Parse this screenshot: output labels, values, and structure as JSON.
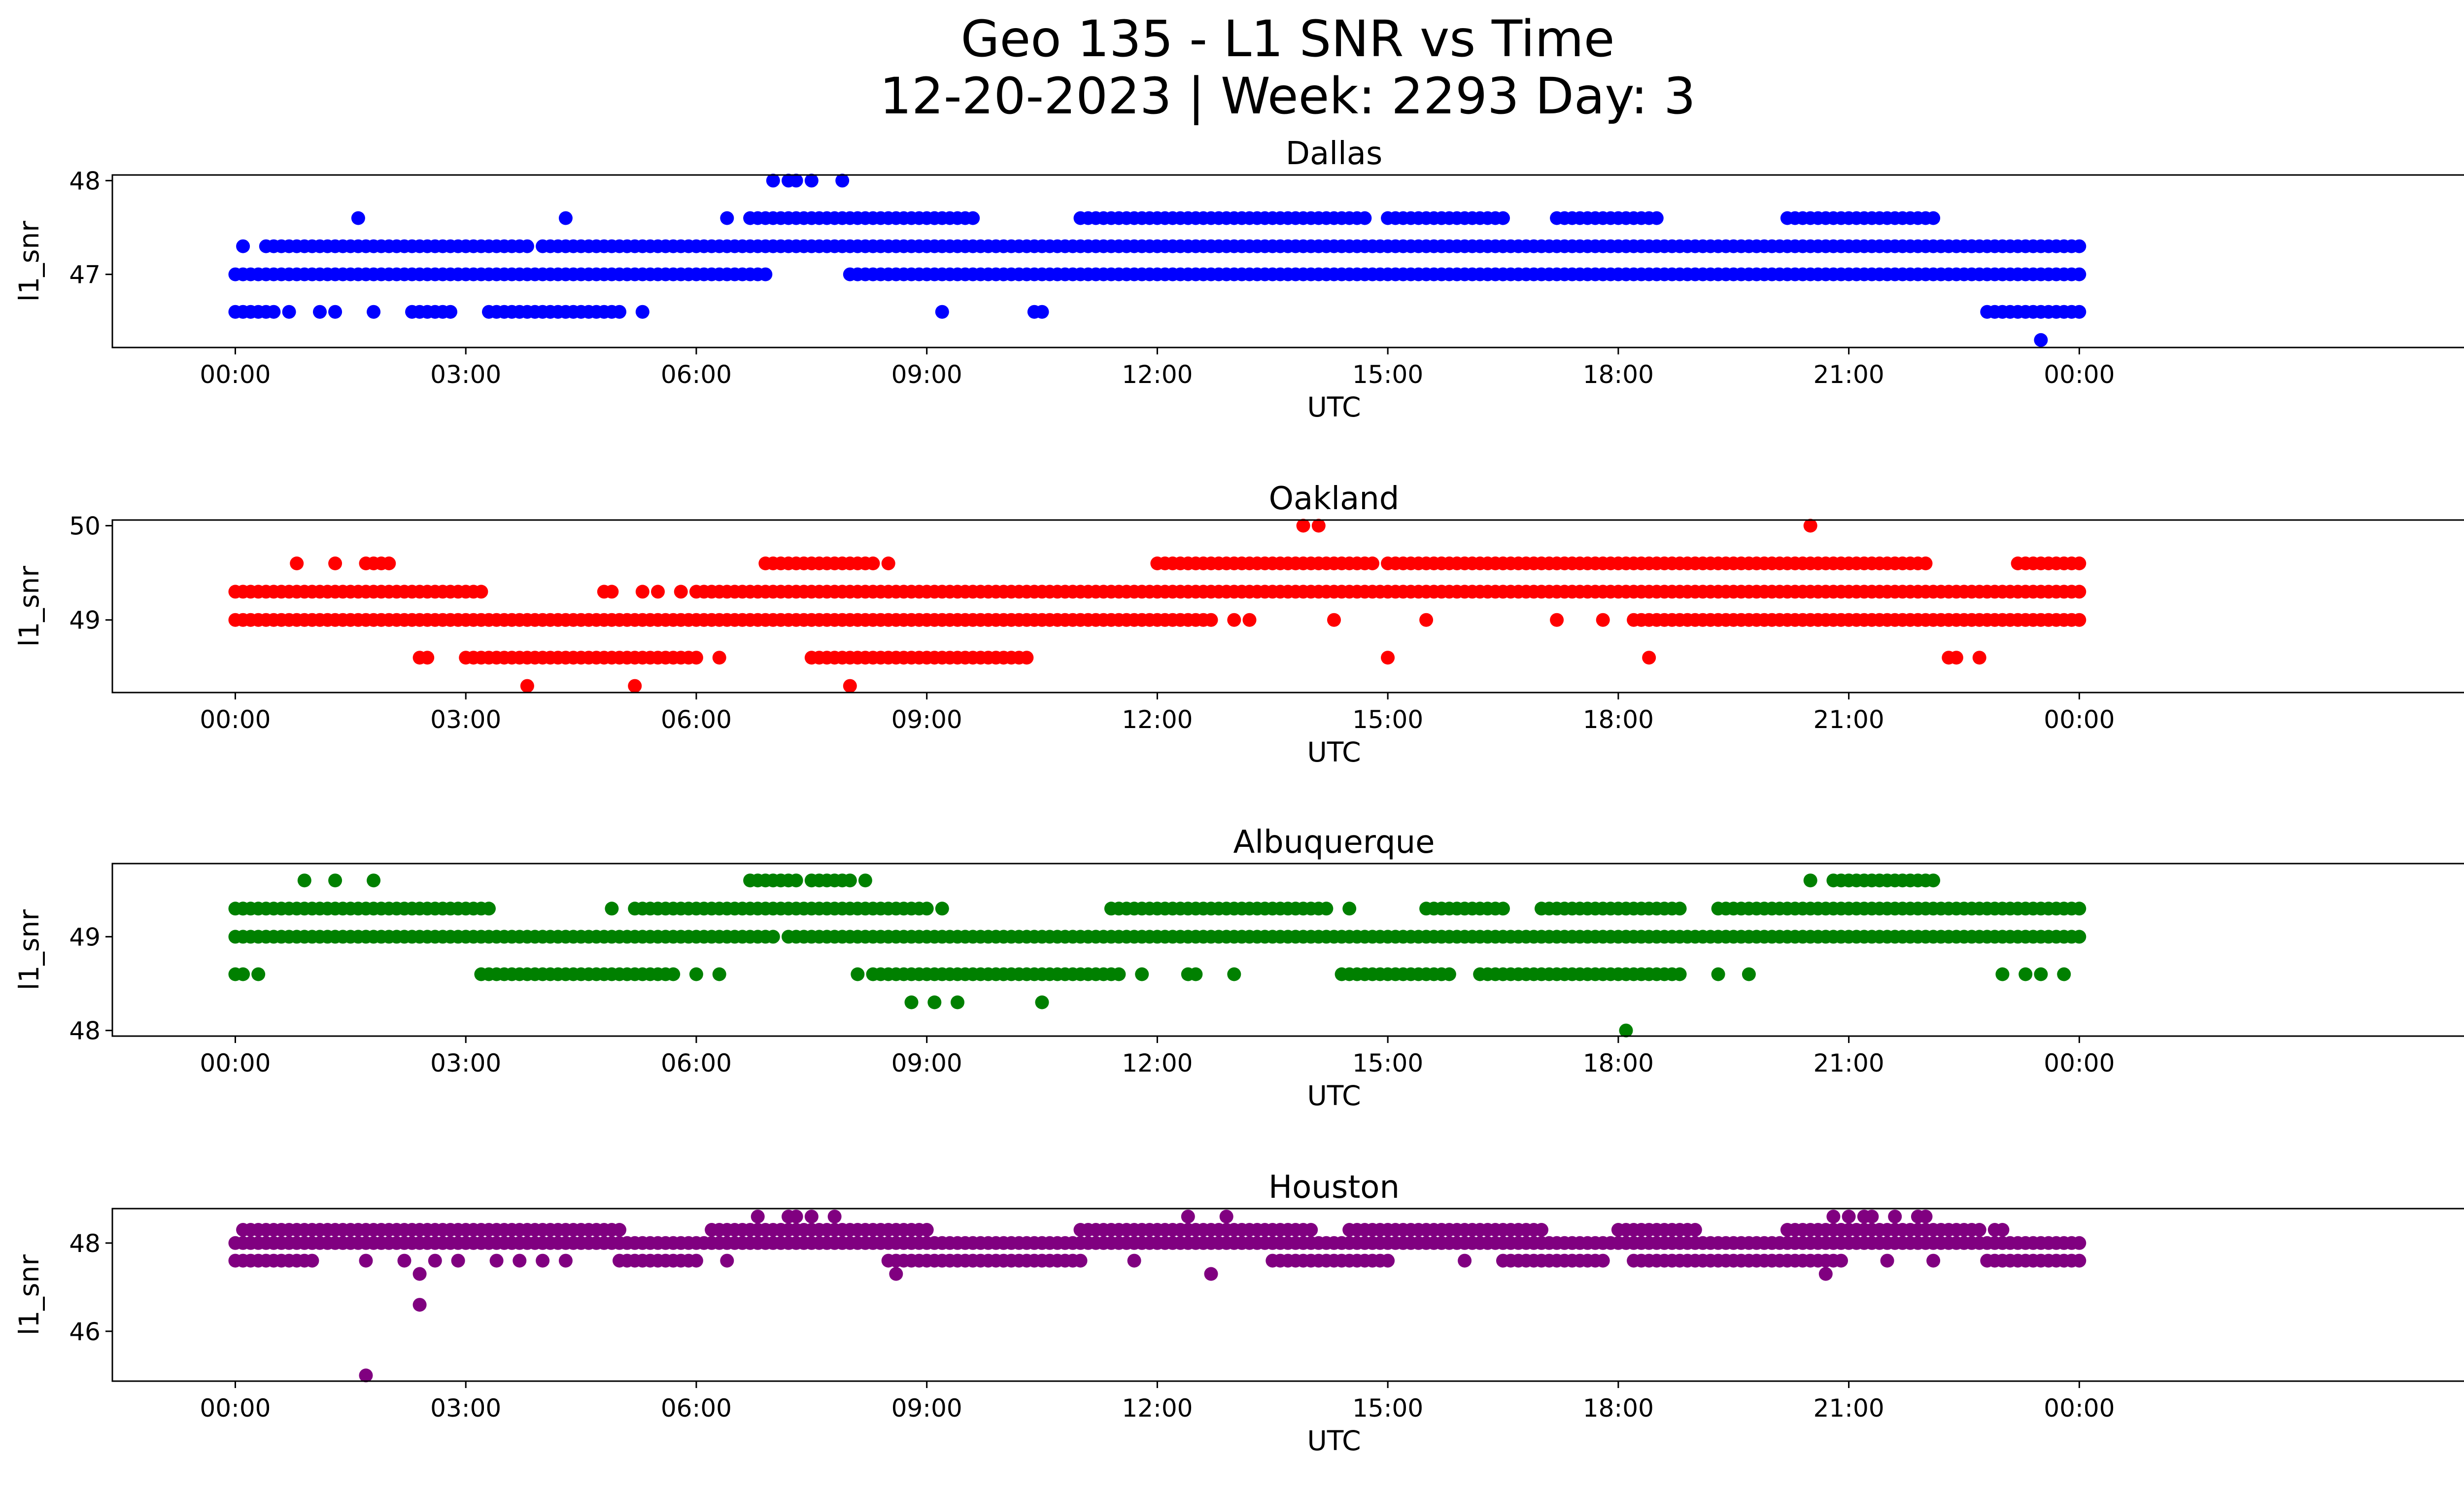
{
  "title_line1": "Geo 135 - L1 SNR vs Time",
  "title_line2": "12-20-2023 | Week: 2293 Day: 3",
  "chart_data": [
    {
      "type": "scatter",
      "title": "Dallas",
      "xlabel": "UTC",
      "ylabel": "l1_snr",
      "color": "#0000ff",
      "xlim": [
        -1.6,
        30.2
      ],
      "ylim": [
        46.22,
        48.06
      ],
      "xticks": [
        0,
        3,
        6,
        9,
        12,
        15,
        18,
        21,
        24
      ],
      "xticklabels": [
        "00:00",
        "03:00",
        "06:00",
        "09:00",
        "12:00",
        "15:00",
        "18:00",
        "21:00",
        "00:00"
      ],
      "yticks": [
        47,
        48
      ],
      "yticklabels": [
        "47",
        "48"
      ],
      "segments": [
        {
          "y": 47.3,
          "ranges": [
            [
              0.1,
              0.1
            ],
            [
              0.4,
              3.8
            ],
            [
              4.0,
              24.0
            ]
          ]
        },
        {
          "y": 47.0,
          "ranges": [
            [
              0.0,
              6.8
            ],
            [
              8.0,
              24.0
            ]
          ]
        },
        {
          "y": 47.6,
          "ranges": [
            [
              6.7,
              9.6
            ],
            [
              11.0,
              14.7
            ],
            [
              15.0,
              16.5
            ],
            [
              17.2,
              18.5
            ],
            [
              20.2,
              22.1
            ]
          ]
        },
        {
          "y": 46.6,
          "ranges": [
            [
              0.0,
              0.5
            ],
            [
              2.3,
              2.8
            ],
            [
              3.3,
              5.0
            ],
            [
              22.8,
              24.0
            ]
          ]
        }
      ],
      "points": [
        {
          "x": 0.7,
          "y": 46.6
        },
        {
          "x": 1.1,
          "y": 46.6
        },
        {
          "x": 1.3,
          "y": 46.6
        },
        {
          "x": 1.8,
          "y": 46.6
        },
        {
          "x": 5.3,
          "y": 46.6
        },
        {
          "x": 9.2,
          "y": 46.6
        },
        {
          "x": 10.4,
          "y": 46.6
        },
        {
          "x": 10.5,
          "y": 46.6
        },
        {
          "x": 1.6,
          "y": 47.6
        },
        {
          "x": 4.3,
          "y": 47.6
        },
        {
          "x": 6.4,
          "y": 47.6
        },
        {
          "x": 9.1,
          "y": 47.6
        },
        {
          "x": 7.0,
          "y": 48.0
        },
        {
          "x": 7.2,
          "y": 48.0
        },
        {
          "x": 7.3,
          "y": 48.0
        },
        {
          "x": 7.5,
          "y": 48.0
        },
        {
          "x": 7.9,
          "y": 48.0
        },
        {
          "x": 23.5,
          "y": 46.3
        },
        {
          "x": 22.6,
          "y": 47.3
        },
        {
          "x": 6.9,
          "y": 47.0
        }
      ]
    },
    {
      "type": "scatter",
      "title": "Oakland",
      "xlabel": "UTC",
      "ylabel": "l1_snr",
      "color": "#ff0000",
      "xlim": [
        -1.6,
        30.2
      ],
      "ylim": [
        48.23,
        50.06
      ],
      "xticks": [
        0,
        3,
        6,
        9,
        12,
        15,
        18,
        21,
        24
      ],
      "xticklabels": [
        "00:00",
        "03:00",
        "06:00",
        "09:00",
        "12:00",
        "15:00",
        "18:00",
        "21:00",
        "00:00"
      ],
      "yticks": [
        49,
        50
      ],
      "yticklabels": [
        "49",
        "50"
      ],
      "segments": [
        {
          "y": 49.3,
          "ranges": [
            [
              0.0,
              3.2
            ],
            [
              6.0,
              24.0
            ]
          ]
        },
        {
          "y": 49.0,
          "ranges": [
            [
              0.0,
              12.7
            ],
            [
              18.2,
              24.0
            ]
          ]
        },
        {
          "y": 48.6,
          "ranges": [
            [
              3.0,
              6.0
            ],
            [
              7.5,
              10.3
            ]
          ]
        },
        {
          "y": 49.6,
          "ranges": [
            [
              1.7,
              2.0
            ],
            [
              7.0,
              8.3
            ],
            [
              12.0,
              14.8
            ],
            [
              15.0,
              22.0
            ],
            [
              23.2,
              24.0
            ]
          ]
        }
      ],
      "points": [
        {
          "x": 0.8,
          "y": 49.6
        },
        {
          "x": 1.3,
          "y": 49.6
        },
        {
          "x": 6.9,
          "y": 49.6
        },
        {
          "x": 8.5,
          "y": 49.6
        },
        {
          "x": 13.9,
          "y": 50.0
        },
        {
          "x": 14.1,
          "y": 50.0
        },
        {
          "x": 20.5,
          "y": 50.0
        },
        {
          "x": 3.8,
          "y": 48.3
        },
        {
          "x": 5.2,
          "y": 48.3
        },
        {
          "x": 8.0,
          "y": 48.3
        },
        {
          "x": 2.4,
          "y": 48.6
        },
        {
          "x": 2.5,
          "y": 48.6
        },
        {
          "x": 6.3,
          "y": 48.6
        },
        {
          "x": 15.0,
          "y": 48.6
        },
        {
          "x": 18.4,
          "y": 48.6
        },
        {
          "x": 22.3,
          "y": 48.6
        },
        {
          "x": 22.4,
          "y": 48.6
        },
        {
          "x": 22.7,
          "y": 48.6
        },
        {
          "x": 4.8,
          "y": 49.3
        },
        {
          "x": 4.9,
          "y": 49.3
        },
        {
          "x": 5.3,
          "y": 49.3
        },
        {
          "x": 5.5,
          "y": 49.3
        },
        {
          "x": 5.8,
          "y": 49.3
        },
        {
          "x": 13.0,
          "y": 49.0
        },
        {
          "x": 13.2,
          "y": 49.0
        },
        {
          "x": 14.3,
          "y": 49.0
        },
        {
          "x": 15.5,
          "y": 49.0
        },
        {
          "x": 17.2,
          "y": 49.0
        },
        {
          "x": 17.8,
          "y": 49.0
        }
      ]
    },
    {
      "type": "scatter",
      "title": "Albuquerque",
      "xlabel": "UTC",
      "ylabel": "l1_snr",
      "color": "#008000",
      "xlim": [
        -1.6,
        30.2
      ],
      "ylim": [
        47.94,
        49.78
      ],
      "xticks": [
        0,
        3,
        6,
        9,
        12,
        15,
        18,
        21,
        24
      ],
      "xticklabels": [
        "00:00",
        "03:00",
        "06:00",
        "09:00",
        "12:00",
        "15:00",
        "18:00",
        "21:00",
        "00:00"
      ],
      "yticks": [
        48,
        49
      ],
      "yticklabels": [
        "48",
        "49"
      ],
      "segments": [
        {
          "y": 49.3,
          "ranges": [
            [
              0.0,
              3.3
            ],
            [
              5.2,
              9.0
            ],
            [
              11.4,
              14.2
            ],
            [
              15.5,
              16.5
            ],
            [
              17.0,
              18.8
            ],
            [
              19.3,
              24.0
            ]
          ]
        },
        {
          "y": 49.0,
          "ranges": [
            [
              0.0,
              7.0
            ],
            [
              7.2,
              24.0
            ]
          ]
        },
        {
          "y": 48.6,
          "ranges": [
            [
              3.2,
              5.7
            ],
            [
              8.3,
              11.5
            ],
            [
              14.4,
              15.8
            ],
            [
              16.2,
              18.8
            ]
          ]
        },
        {
          "y": 49.6,
          "ranges": [
            [
              6.7,
              7.3
            ],
            [
              7.5,
              8.0
            ],
            [
              20.8,
              22.1
            ]
          ]
        }
      ],
      "points": [
        {
          "x": 0.0,
          "y": 48.6
        },
        {
          "x": 0.1,
          "y": 48.6
        },
        {
          "x": 0.3,
          "y": 48.6
        },
        {
          "x": 6.0,
          "y": 48.6
        },
        {
          "x": 6.3,
          "y": 48.6
        },
        {
          "x": 8.1,
          "y": 48.6
        },
        {
          "x": 11.8,
          "y": 48.6
        },
        {
          "x": 12.4,
          "y": 48.6
        },
        {
          "x": 12.5,
          "y": 48.6
        },
        {
          "x": 13.0,
          "y": 48.6
        },
        {
          "x": 19.3,
          "y": 48.6
        },
        {
          "x": 19.7,
          "y": 48.6
        },
        {
          "x": 23.0,
          "y": 48.6
        },
        {
          "x": 23.3,
          "y": 48.6
        },
        {
          "x": 23.5,
          "y": 48.6
        },
        {
          "x": 23.8,
          "y": 48.6
        },
        {
          "x": 8.8,
          "y": 48.3
        },
        {
          "x": 9.1,
          "y": 48.3
        },
        {
          "x": 9.4,
          "y": 48.3
        },
        {
          "x": 10.5,
          "y": 48.3
        },
        {
          "x": 18.1,
          "y": 48.0
        },
        {
          "x": 0.1,
          "y": 49.3
        },
        {
          "x": 4.9,
          "y": 49.3
        },
        {
          "x": 9.2,
          "y": 49.3
        },
        {
          "x": 14.5,
          "y": 49.3
        },
        {
          "x": 0.9,
          "y": 49.6
        },
        {
          "x": 1.3,
          "y": 49.6
        },
        {
          "x": 1.8,
          "y": 49.6
        },
        {
          "x": 8.2,
          "y": 49.6
        },
        {
          "x": 20.5,
          "y": 49.6
        }
      ]
    },
    {
      "type": "scatter",
      "title": "Houston",
      "xlabel": "UTC",
      "ylabel": "l1_snr",
      "color": "#800080",
      "xlim": [
        -1.6,
        30.2
      ],
      "ylim": [
        44.87,
        48.78
      ],
      "xticks": [
        0,
        3,
        6,
        9,
        12,
        15,
        18,
        21,
        24
      ],
      "xticklabels": [
        "00:00",
        "03:00",
        "06:00",
        "09:00",
        "12:00",
        "15:00",
        "18:00",
        "21:00",
        "00:00"
      ],
      "yticks": [
        46,
        48
      ],
      "yticklabels": [
        "46",
        "48"
      ],
      "segments": [
        {
          "y": 48.3,
          "ranges": [
            [
              0.1,
              5.0
            ],
            [
              6.2,
              9.0
            ],
            [
              11.0,
              14.0
            ],
            [
              14.5,
              17.0
            ],
            [
              18.0,
              19.0
            ],
            [
              20.2,
              22.7
            ]
          ]
        },
        {
          "y": 48.0,
          "ranges": [
            [
              0.0,
              24.0
            ]
          ]
        },
        {
          "y": 47.6,
          "ranges": [
            [
              0.0,
              1.0
            ],
            [
              5.0,
              6.0
            ],
            [
              8.5,
              11.0
            ],
            [
              13.5,
              15.0
            ],
            [
              16.5,
              17.8
            ],
            [
              18.2,
              20.9
            ],
            [
              22.8,
              24.0
            ]
          ]
        }
      ],
      "points": [
        {
          "x": 1.7,
          "y": 45.0
        },
        {
          "x": 2.4,
          "y": 46.6
        },
        {
          "x": 2.4,
          "y": 47.3
        },
        {
          "x": 8.6,
          "y": 47.3
        },
        {
          "x": 12.7,
          "y": 47.3
        },
        {
          "x": 20.7,
          "y": 47.3
        },
        {
          "x": 1.7,
          "y": 47.6
        },
        {
          "x": 2.2,
          "y": 47.6
        },
        {
          "x": 2.6,
          "y": 47.6
        },
        {
          "x": 2.9,
          "y": 47.6
        },
        {
          "x": 3.4,
          "y": 47.6
        },
        {
          "x": 3.7,
          "y": 47.6
        },
        {
          "x": 4.0,
          "y": 47.6
        },
        {
          "x": 4.3,
          "y": 47.6
        },
        {
          "x": 6.4,
          "y": 47.6
        },
        {
          "x": 11.7,
          "y": 47.6
        },
        {
          "x": 16.0,
          "y": 47.6
        },
        {
          "x": 21.5,
          "y": 47.6
        },
        {
          "x": 22.1,
          "y": 47.6
        },
        {
          "x": 6.8,
          "y": 48.6
        },
        {
          "x": 7.2,
          "y": 48.6
        },
        {
          "x": 7.3,
          "y": 48.6
        },
        {
          "x": 7.5,
          "y": 48.6
        },
        {
          "x": 7.8,
          "y": 48.6
        },
        {
          "x": 12.4,
          "y": 48.6
        },
        {
          "x": 12.9,
          "y": 48.6
        },
        {
          "x": 20.8,
          "y": 48.6
        },
        {
          "x": 21.0,
          "y": 48.6
        },
        {
          "x": 21.2,
          "y": 48.6
        },
        {
          "x": 21.3,
          "y": 48.6
        },
        {
          "x": 21.6,
          "y": 48.6
        },
        {
          "x": 21.9,
          "y": 48.6
        },
        {
          "x": 22.0,
          "y": 48.6
        },
        {
          "x": 22.9,
          "y": 48.3
        },
        {
          "x": 23.0,
          "y": 48.3
        }
      ]
    }
  ]
}
